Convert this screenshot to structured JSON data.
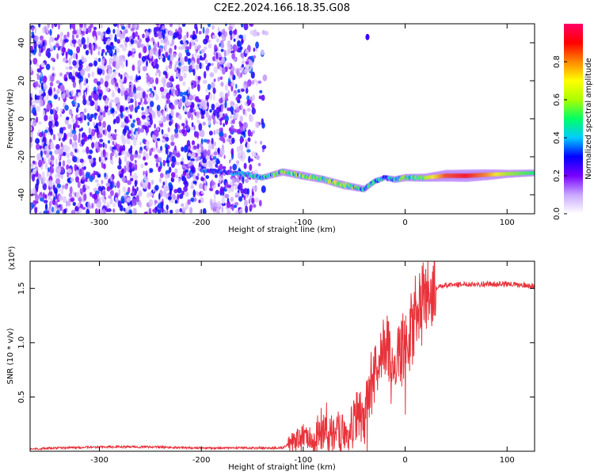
{
  "title": "C2E2.2024.166.18.35.G08",
  "chart_data": [
    {
      "type": "heatmap",
      "xlabel": "Height of straight line (km)",
      "ylabel": "Frequency (Hz)",
      "xlim": [
        -368,
        127
      ],
      "ylim": [
        -50,
        50
      ],
      "x_ticks": [
        -300,
        -200,
        -100,
        0,
        100
      ],
      "y_ticks": [
        -40,
        -20,
        0,
        20,
        40
      ],
      "colorbar": {
        "label": "Normalized spectral amplitude",
        "range": [
          0,
          1
        ],
        "ticks": [
          "0.0",
          "0.2",
          "0.4",
          "0.6",
          "0.8"
        ],
        "colors": [
          "#ffffff",
          "#c9a8ff",
          "#7a00ff",
          "#0000ff",
          "#00ccff",
          "#00ff66",
          "#aaff00",
          "#ffff00",
          "#ff8800",
          "#ff0000",
          "#ff0066"
        ]
      },
      "noise_region": {
        "x_range": [
          -368,
          -135
        ],
        "freq_range": [
          -50,
          50
        ]
      },
      "signal_track": {
        "x": [
          -200,
          -180,
          -160,
          -140,
          -120,
          -100,
          -80,
          -60,
          -40,
          -30,
          -20,
          -10,
          0,
          20,
          40,
          60,
          80,
          100,
          127
        ],
        "freq": [
          -27,
          -28,
          -29,
          -31,
          -28,
          -30,
          -32,
          -35,
          -37,
          -33,
          -31,
          -32,
          -31,
          -31,
          -30,
          -30,
          -29.5,
          -29,
          -28.5
        ],
        "amplitude": [
          0.35,
          0.3,
          0.4,
          0.45,
          0.55,
          0.6,
          0.55,
          0.6,
          0.5,
          0.45,
          0.4,
          0.5,
          0.55,
          0.6,
          0.85,
          0.9,
          0.8,
          0.6,
          0.5
        ]
      },
      "outlier_points": [
        {
          "x": -37,
          "freq": 43
        }
      ]
    },
    {
      "type": "line",
      "xlabel": "Height of straight line (km)",
      "ylabel": "SNR (10 * v/v)",
      "y_multiplier": "(x10⁴)",
      "xlim": [
        -368,
        127
      ],
      "ylim": [
        0,
        1.75
      ],
      "x_ticks": [
        -300,
        -200,
        -100,
        0,
        100
      ],
      "y_ticks": [
        "0.5",
        "1.0",
        "1.5"
      ],
      "series": [
        {
          "color": "#e8323a",
          "x": [
            -368,
            -340,
            -300,
            -250,
            -200,
            -150,
            -120,
            -110,
            -100,
            -90,
            -80,
            -70,
            -60,
            -50,
            -45,
            -40,
            -35,
            -30,
            -25,
            -20,
            -15,
            -10,
            -5,
            0,
            5,
            10,
            15,
            20,
            25,
            30,
            40,
            60,
            80,
            100,
            127
          ],
          "y": [
            0.02,
            0.03,
            0.04,
            0.04,
            0.03,
            0.03,
            0.03,
            0.1,
            0.15,
            0.12,
            0.18,
            0.15,
            0.2,
            0.25,
            0.35,
            0.3,
            0.5,
            0.7,
            0.9,
            1.0,
            0.9,
            0.8,
            0.9,
            1.0,
            1.1,
            1.25,
            1.3,
            1.4,
            1.45,
            1.5,
            1.53,
            1.54,
            1.54,
            1.54,
            1.52
          ]
        }
      ]
    }
  ]
}
